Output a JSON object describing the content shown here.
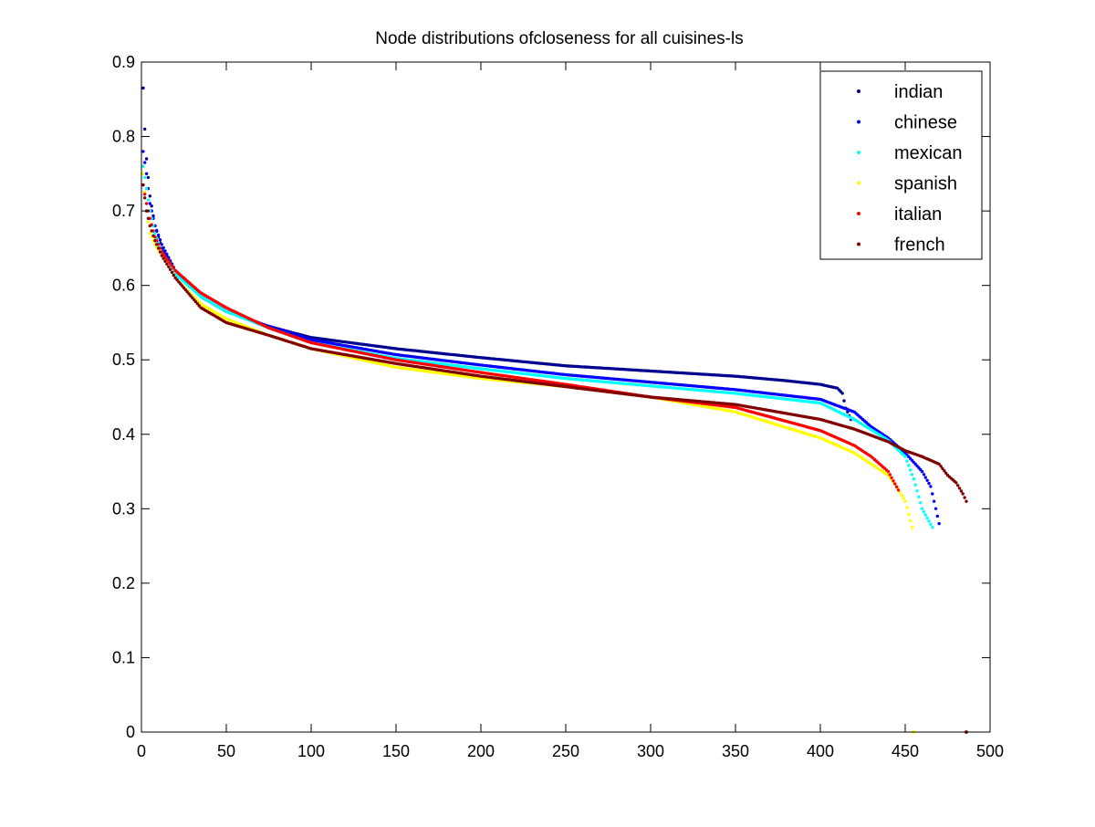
{
  "chart_data": {
    "type": "scatter",
    "title": "Node distributions ofcloseness for all cuisines-ls",
    "xlabel": "",
    "ylabel": "",
    "xlim": [
      0,
      500
    ],
    "ylim": [
      0,
      0.9
    ],
    "xticks": [
      0,
      50,
      100,
      150,
      200,
      250,
      300,
      350,
      400,
      450,
      500
    ],
    "yticks": [
      0,
      0.1,
      0.2,
      0.3,
      0.4,
      0.5,
      0.6,
      0.7,
      0.8,
      0.9
    ],
    "xtick_labels": [
      "0",
      "50",
      "100",
      "150",
      "200",
      "250",
      "300",
      "350",
      "400",
      "450",
      "500"
    ],
    "ytick_labels": [
      "0",
      "0.1",
      "0.2",
      "0.3",
      "0.4",
      "0.5",
      "0.6",
      "0.7",
      "0.8",
      "0.9"
    ],
    "grid": false,
    "legend_position": "top-right",
    "marker": "dot",
    "series": [
      {
        "name": "indian",
        "color": "#00008F",
        "n": 418,
        "x": [
          1,
          2,
          3,
          5,
          8,
          12,
          20,
          35,
          50,
          75,
          100,
          150,
          200,
          250,
          300,
          350,
          380,
          400,
          410,
          413,
          415,
          418
        ],
        "y": [
          0.865,
          0.81,
          0.77,
          0.72,
          0.68,
          0.65,
          0.62,
          0.585,
          0.565,
          0.545,
          0.53,
          0.515,
          0.503,
          0.492,
          0.485,
          0.478,
          0.472,
          0.467,
          0.462,
          0.455,
          0.435,
          0.42
        ]
      },
      {
        "name": "chinese",
        "color": "#0000FF",
        "n": 470,
        "x": [
          1,
          3,
          5,
          8,
          12,
          20,
          35,
          50,
          75,
          100,
          150,
          200,
          250,
          300,
          350,
          400,
          420,
          430,
          440,
          450,
          460,
          465,
          470
        ],
        "y": [
          0.78,
          0.75,
          0.71,
          0.68,
          0.655,
          0.62,
          0.585,
          0.565,
          0.545,
          0.527,
          0.507,
          0.493,
          0.48,
          0.47,
          0.46,
          0.447,
          0.43,
          0.41,
          0.395,
          0.375,
          0.35,
          0.33,
          0.28
        ]
      },
      {
        "name": "mexican",
        "color": "#00FFFF",
        "n": 466,
        "x": [
          1,
          3,
          5,
          8,
          12,
          20,
          35,
          50,
          75,
          100,
          150,
          200,
          250,
          300,
          350,
          400,
          420,
          440,
          450,
          455,
          460,
          466
        ],
        "y": [
          0.76,
          0.73,
          0.7,
          0.67,
          0.645,
          0.615,
          0.585,
          0.565,
          0.543,
          0.523,
          0.502,
          0.488,
          0.475,
          0.465,
          0.455,
          0.442,
          0.42,
          0.392,
          0.37,
          0.34,
          0.3,
          0.275
        ]
      },
      {
        "name": "spanish",
        "color": "#FFFF00",
        "n": 454,
        "x": [
          1,
          3,
          5,
          8,
          12,
          20,
          35,
          50,
          75,
          100,
          150,
          200,
          250,
          300,
          350,
          400,
          420,
          430,
          440,
          445,
          450,
          454
        ],
        "y": [
          0.75,
          0.7,
          0.67,
          0.655,
          0.64,
          0.61,
          0.575,
          0.555,
          0.533,
          0.515,
          0.49,
          0.475,
          0.464,
          0.45,
          0.43,
          0.395,
          0.375,
          0.36,
          0.345,
          0.33,
          0.31,
          0.275
        ]
      },
      {
        "name": "italian",
        "color": "#FF0000",
        "n": 446,
        "x": [
          1,
          3,
          5,
          8,
          12,
          20,
          35,
          50,
          75,
          100,
          150,
          200,
          250,
          300,
          350,
          400,
          420,
          430,
          440,
          446
        ],
        "y": [
          0.735,
          0.71,
          0.69,
          0.665,
          0.645,
          0.62,
          0.59,
          0.57,
          0.543,
          0.523,
          0.5,
          0.483,
          0.467,
          0.45,
          0.436,
          0.405,
          0.385,
          0.37,
          0.35,
          0.325
        ]
      },
      {
        "name": "french",
        "color": "#800000",
        "n": 486,
        "x": [
          1,
          3,
          5,
          8,
          12,
          20,
          35,
          50,
          75,
          100,
          150,
          200,
          250,
          300,
          350,
          400,
          420,
          440,
          450,
          460,
          470,
          475,
          480,
          484,
          486
        ],
        "y": [
          0.735,
          0.7,
          0.68,
          0.66,
          0.64,
          0.61,
          0.57,
          0.55,
          0.533,
          0.515,
          0.495,
          0.478,
          0.464,
          0.45,
          0.44,
          0.42,
          0.407,
          0.39,
          0.378,
          0.37,
          0.36,
          0.345,
          0.335,
          0.32,
          0.31
        ]
      }
    ],
    "outliers": [
      {
        "series": "spanish",
        "x": 455,
        "y": 0.0
      },
      {
        "series": "french",
        "x": 486,
        "y": 0.0
      }
    ]
  }
}
